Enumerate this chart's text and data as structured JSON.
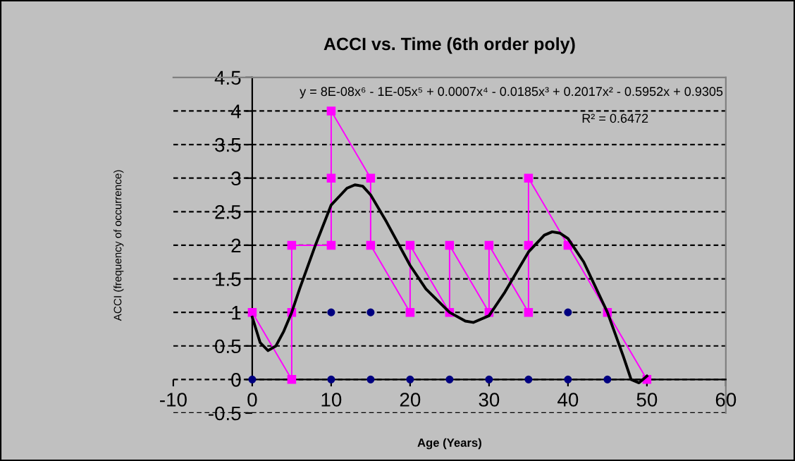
{
  "chart_data": {
    "type": "scatter",
    "title": "ACCI vs. Time (6th order poly)",
    "xlabel": "Age (Years)",
    "ylabel": "ACCI (frequency of occurrence)",
    "annotations": [
      "y = 8E-08x⁶ - 1E-05x⁵ + 0.0007x⁴ - 0.0185x³ + 0.2017x² - 0.5952x + 0.9305",
      "R² = 0.6472"
    ],
    "xlim": [
      -10,
      60
    ],
    "xticks": [
      -10,
      0,
      10,
      20,
      30,
      40,
      50,
      60
    ],
    "ylim": [
      -0.5,
      4.5
    ],
    "yticks": [
      -0.5,
      0,
      0.5,
      1,
      1.5,
      2,
      2.5,
      3,
      3.5,
      4,
      4.5
    ],
    "grid": "y",
    "series": [
      {
        "type": "scatter",
        "marker": "circle",
        "color": "#000080",
        "x": [
          0,
          10,
          15,
          20,
          25,
          30,
          35,
          40,
          45,
          10,
          15,
          40
        ],
        "values": [
          0,
          0,
          0,
          0,
          0,
          0,
          0,
          0,
          0,
          1,
          1,
          1
        ]
      },
      {
        "type": "line",
        "marker": "square",
        "color": "#ff00ff",
        "x": [
          0,
          5,
          5,
          5,
          10,
          10,
          10,
          15,
          15,
          20,
          20,
          25,
          25,
          30,
          30,
          35,
          35,
          35,
          40,
          45,
          50
        ],
        "values": [
          1,
          0,
          1,
          2,
          2,
          3,
          4,
          3,
          2,
          1,
          2,
          1,
          2,
          1,
          2,
          1,
          2,
          3,
          2,
          1,
          0
        ]
      },
      {
        "type": "line",
        "marker": "none",
        "color": "#000000",
        "x": [
          0,
          1,
          2,
          3,
          4,
          5,
          6,
          8,
          10,
          12,
          13,
          14,
          15,
          17,
          20,
          22,
          25,
          27,
          28,
          30,
          32,
          35,
          37,
          38,
          39,
          40,
          42,
          45,
          47,
          48,
          49,
          50
        ],
        "values": [
          0.93,
          0.55,
          0.43,
          0.5,
          0.72,
          1.0,
          1.35,
          2.0,
          2.6,
          2.85,
          2.9,
          2.88,
          2.75,
          2.35,
          1.7,
          1.35,
          1.0,
          0.87,
          0.85,
          0.95,
          1.3,
          1.9,
          2.15,
          2.2,
          2.18,
          2.1,
          1.75,
          1.0,
          0.35,
          0.0,
          -0.05,
          0.05
        ]
      }
    ]
  }
}
